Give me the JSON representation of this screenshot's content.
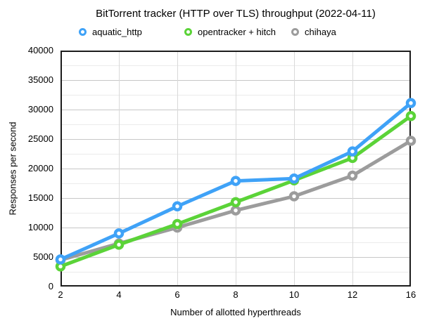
{
  "chart_data": {
    "type": "line",
    "title": "BitTorrent tracker (HTTP over TLS) throughput (2022-04-11)",
    "xlabel": "Number of allotted hyperthreads",
    "ylabel": "Responses per second",
    "x": [
      2,
      4,
      6,
      8,
      10,
      12,
      16
    ],
    "x_tick_labels": [
      "2",
      "4",
      "6",
      "8",
      "10",
      "12",
      "16"
    ],
    "equal_x_spacing": true,
    "ylim": [
      0,
      40000
    ],
    "y_major_step": 5000,
    "y_minor_step": 2500,
    "grid": true,
    "legend_position": "top",
    "marker": "open-circle",
    "series": [
      {
        "name": "aquatic_http",
        "color": "#3FA2F7",
        "values": [
          4600,
          9000,
          13600,
          17900,
          18300,
          22900,
          31100
        ]
      },
      {
        "name": "opentracker + hitch",
        "color": "#5BD338",
        "values": [
          3400,
          7100,
          10600,
          14300,
          18000,
          21800,
          28900
        ]
      },
      {
        "name": "chihaya",
        "color": "#9C9C9C",
        "values": [
          4500,
          7300,
          10000,
          12900,
          15300,
          18800,
          24700
        ]
      }
    ]
  }
}
